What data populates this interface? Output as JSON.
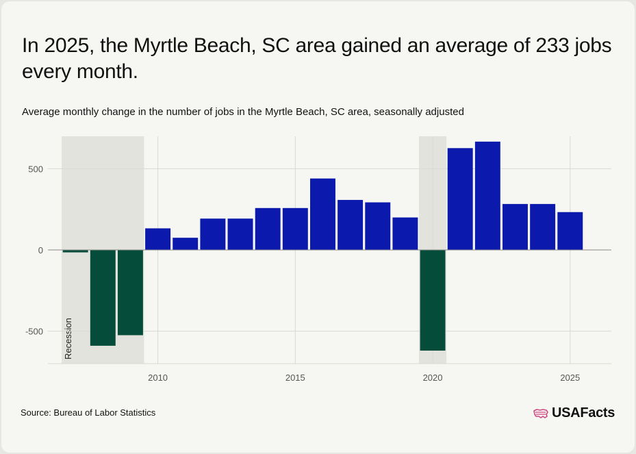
{
  "header": {
    "title": "In 2025, the Myrtle Beach, SC area gained an average of 233 jobs every month.",
    "subtitle": "Average monthly change in the number of jobs in the Myrtle Beach, SC area, seasonally adjusted"
  },
  "footer": {
    "source": "Source: Bureau of Labor Statistics",
    "logo_text": "USAFacts"
  },
  "colors": {
    "positive": "#0b19ad",
    "negative": "#054d3a",
    "recession_shade": "#e3e3de",
    "grid": "#d9d9d4",
    "axis_text": "#555555"
  },
  "chart_data": {
    "type": "bar",
    "title": "",
    "xlabel": "",
    "ylabel": "",
    "x": [
      2007,
      2008,
      2009,
      2010,
      2011,
      2012,
      2013,
      2014,
      2015,
      2016,
      2017,
      2018,
      2019,
      2020,
      2021,
      2022,
      2023,
      2024,
      2025
    ],
    "values": [
      -15,
      -590,
      -525,
      133,
      75,
      193,
      193,
      258,
      258,
      440,
      308,
      293,
      200,
      -620,
      627,
      667,
      283,
      283,
      233
    ],
    "yticks": [
      -500,
      0,
      500
    ],
    "ytick_labels": [
      "-500",
      "0",
      "500"
    ],
    "xticks": [
      2010,
      2015,
      2020,
      2025
    ],
    "xtick_labels": [
      "2010",
      "2015",
      "2020",
      "2025"
    ],
    "ylim": [
      -700,
      700
    ],
    "xlim": [
      2006,
      2026.5
    ],
    "grid": true,
    "recessions": [
      {
        "start": 2006.5,
        "end": 2009.5,
        "label": "Recession"
      },
      {
        "start": 2019.5,
        "end": 2020.5,
        "label": ""
      }
    ]
  }
}
